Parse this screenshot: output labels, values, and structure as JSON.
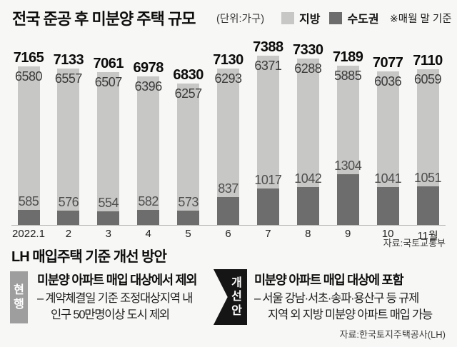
{
  "header": {
    "title": "전국 준공 후 미분양 주택 규모",
    "unit_label": "(단위:가구)",
    "legend": [
      {
        "label": "지방",
        "color": "#c7c7c6"
      },
      {
        "label": "수도권",
        "color": "#6d6d6d"
      }
    ],
    "note": "※매월 말 기준"
  },
  "chart_data": {
    "type": "bar",
    "stacked": true,
    "title": "전국 준공 후 미분양 주택 규모",
    "unit": "가구",
    "legend_position": "top-right",
    "grid": false,
    "categories": [
      "2022.1",
      "2",
      "3",
      "4",
      "5",
      "6",
      "7",
      "8",
      "9",
      "10",
      "11월"
    ],
    "series": [
      {
        "name": "지방",
        "color": "#c7c7c6",
        "values": [
          6580,
          6557,
          6507,
          6396,
          6257,
          6293,
          6371,
          6288,
          5885,
          6036,
          6059
        ]
      },
      {
        "name": "수도권",
        "color": "#6d6d6d",
        "values": [
          585,
          576,
          554,
          582,
          573,
          837,
          1017,
          1042,
          1304,
          1041,
          1051
        ]
      }
    ],
    "totals": [
      7165,
      7133,
      7061,
      6978,
      6830,
      7130,
      7388,
      7330,
      7189,
      7077,
      7110
    ],
    "source": "자료:국토교통부"
  },
  "section": {
    "title": "LH 매입주택 기준 개선 방안",
    "panels": [
      {
        "tag": "현행",
        "tag_color": "#9e9e9e",
        "title": "미분양 아파트 매입 대상에서 제외",
        "lines": [
          "– 계약체결일 기준 조정대상지역 내",
          "인구 50만명이상 도시 제외"
        ]
      },
      {
        "tag": "개선안",
        "tag_color": "#151515",
        "title": "미분양 아파트 매입 대상에 포함",
        "lines": [
          "– 서울 강남·서초·송파·용산구 등 규제",
          "지역 외 지방 미분양 아파트 매입 가능"
        ]
      }
    ],
    "source": "자료:한국토지주택공사(LH)"
  }
}
